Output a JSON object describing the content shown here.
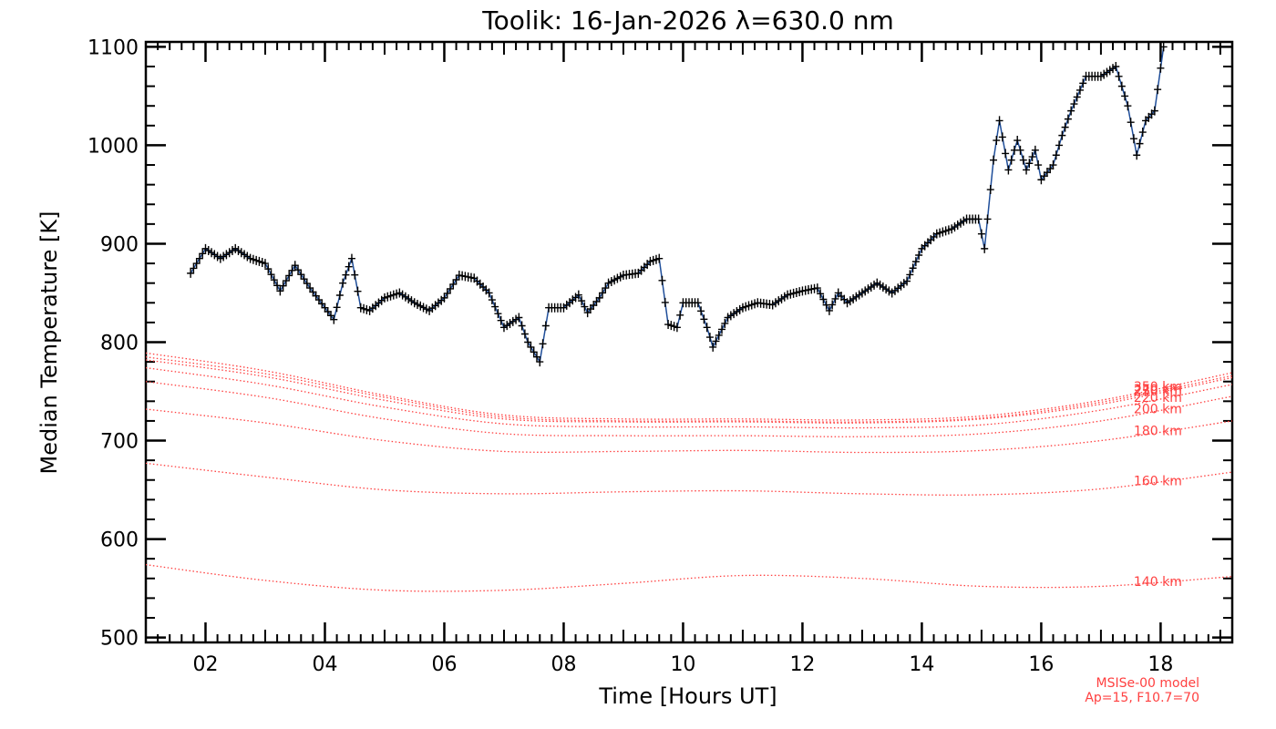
{
  "chart_data": {
    "type": "line",
    "title": "Toolik: 16-Jan-2026 λ=630.0 nm",
    "xlabel": "Time [Hours UT]",
    "ylabel": "Median Temperature [K]",
    "xlim": [
      1.0,
      19.2
    ],
    "ylim": [
      495,
      1105
    ],
    "x_ticks": [
      2,
      4,
      6,
      8,
      10,
      12,
      14,
      16,
      18
    ],
    "x_tick_labels": [
      "02",
      "04",
      "06",
      "08",
      "10",
      "12",
      "14",
      "16",
      "18"
    ],
    "y_ticks": [
      500,
      600,
      700,
      800,
      900,
      1000,
      1100
    ],
    "y_tick_labels": [
      "500",
      "600",
      "700",
      "800",
      "900",
      "1000",
      "1100"
    ],
    "series": [
      {
        "name": "Median Temperature",
        "color": "#1f4e9a",
        "marker_color": "#000000",
        "x": [
          1.75,
          2.0,
          2.25,
          2.5,
          2.75,
          3.0,
          3.25,
          3.5,
          3.75,
          4.0,
          4.15,
          4.3,
          4.45,
          4.6,
          4.75,
          5.0,
          5.25,
          5.5,
          5.75,
          6.0,
          6.25,
          6.5,
          6.75,
          7.0,
          7.25,
          7.4,
          7.6,
          7.75,
          8.0,
          8.25,
          8.4,
          8.6,
          8.75,
          9.0,
          9.25,
          9.45,
          9.6,
          9.75,
          9.9,
          10.0,
          10.25,
          10.4,
          10.5,
          10.75,
          11.0,
          11.25,
          11.5,
          11.75,
          12.0,
          12.25,
          12.45,
          12.6,
          12.75,
          13.0,
          13.25,
          13.5,
          13.75,
          14.0,
          14.25,
          14.5,
          14.75,
          14.95,
          15.05,
          15.2,
          15.3,
          15.45,
          15.6,
          15.75,
          15.9,
          16.0,
          16.2,
          16.35,
          16.5,
          16.75,
          17.0,
          17.25,
          17.45,
          17.6,
          17.75,
          17.9,
          18.05
        ],
        "y": [
          870,
          895,
          885,
          895,
          885,
          880,
          852,
          878,
          855,
          835,
          823,
          860,
          885,
          835,
          832,
          845,
          850,
          840,
          832,
          845,
          868,
          865,
          850,
          815,
          825,
          800,
          780,
          835,
          835,
          848,
          830,
          845,
          860,
          868,
          870,
          882,
          885,
          818,
          815,
          840,
          840,
          815,
          795,
          825,
          835,
          840,
          838,
          848,
          852,
          855,
          832,
          850,
          840,
          850,
          860,
          850,
          862,
          895,
          910,
          915,
          925,
          925,
          895,
          985,
          1025,
          975,
          1005,
          975,
          995,
          965,
          980,
          1010,
          1035,
          1070,
          1070,
          1080,
          1040,
          990,
          1025,
          1035,
          1100
        ]
      }
    ],
    "model_curves": [
      {
        "label": "140 km",
        "x": [
          1.0,
          3.0,
          5.0,
          7.0,
          9.0,
          11.0,
          13.0,
          15.0,
          17.0,
          19.2
        ],
        "y": [
          574,
          558,
          548,
          548,
          555,
          563,
          560,
          552,
          552,
          562
        ]
      },
      {
        "label": "160 km",
        "x": [
          1.0,
          3.0,
          5.0,
          7.0,
          9.0,
          11.0,
          13.0,
          15.0,
          17.0,
          19.2
        ],
        "y": [
          677,
          663,
          650,
          646,
          648,
          649,
          646,
          645,
          651,
          668
        ]
      },
      {
        "label": "180 km",
        "x": [
          1.0,
          3.0,
          5.0,
          7.0,
          9.0,
          11.0,
          13.0,
          15.0,
          17.0,
          19.2
        ],
        "y": [
          732,
          718,
          700,
          689,
          689,
          690,
          688,
          690,
          700,
          720
        ]
      },
      {
        "label": "200 km",
        "x": [
          1.0,
          3.0,
          5.0,
          7.0,
          9.0,
          11.0,
          13.0,
          15.0,
          17.0,
          19.2
        ],
        "y": [
          760,
          744,
          722,
          707,
          705,
          705,
          704,
          707,
          720,
          745
        ]
      },
      {
        "label": "220 km",
        "x": [
          1.0,
          3.0,
          5.0,
          7.0,
          9.0,
          11.0,
          13.0,
          15.0,
          17.0,
          19.2
        ],
        "y": [
          774,
          757,
          734,
          717,
          714,
          714,
          713,
          716,
          731,
          757
        ]
      },
      {
        "label": "250 km",
        "x": [
          1.0,
          3.0,
          5.0,
          7.0,
          9.0,
          11.0,
          13.0,
          15.0,
          17.0,
          19.2
        ],
        "y": [
          782,
          765,
          741,
          722,
          719,
          719,
          718,
          722,
          737,
          764
        ]
      },
      {
        "label": "270 km",
        "x": [
          1.0,
          3.0,
          5.0,
          7.0,
          9.0,
          11.0,
          13.0,
          15.0,
          17.0,
          19.2
        ],
        "y": [
          785,
          768,
          744,
          724,
          720,
          720,
          719,
          723,
          739,
          766
        ]
      },
      {
        "label": "350 km",
        "x": [
          1.0,
          3.0,
          5.0,
          7.0,
          9.0,
          11.0,
          13.0,
          15.0,
          17.0,
          19.2
        ],
        "y": [
          789,
          771,
          746,
          726,
          722,
          722,
          721,
          725,
          741,
          769
        ]
      }
    ],
    "model_color": "#ff4040",
    "model_notes": [
      "MSISe-00 model",
      "Ap=15, F10.7=70"
    ]
  }
}
